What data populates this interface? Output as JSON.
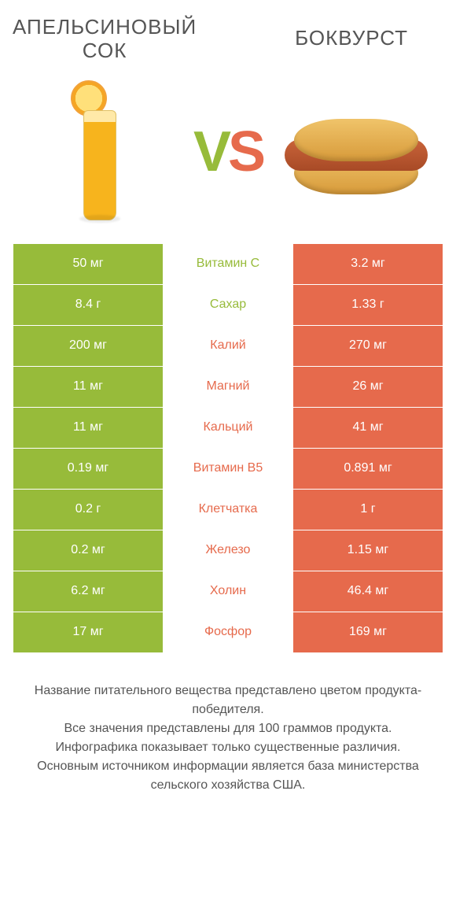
{
  "titles": {
    "left": "АПЕЛЬСИНОВЫЙ СОК",
    "right": "БОКВУРСТ"
  },
  "vs": {
    "v": "V",
    "s": "S"
  },
  "colors": {
    "green": "#97bb3a",
    "orange": "#e66a4c",
    "text": "#555555",
    "white": "#ffffff"
  },
  "rows": [
    {
      "left": "50 мг",
      "mid": "Витамин C",
      "right": "3.2 мг",
      "winner": "left"
    },
    {
      "left": "8.4 г",
      "mid": "Сахар",
      "right": "1.33 г",
      "winner": "left"
    },
    {
      "left": "200 мг",
      "mid": "Калий",
      "right": "270 мг",
      "winner": "right"
    },
    {
      "left": "11 мг",
      "mid": "Магний",
      "right": "26 мг",
      "winner": "right"
    },
    {
      "left": "11 мг",
      "mid": "Кальций",
      "right": "41 мг",
      "winner": "right"
    },
    {
      "left": "0.19 мг",
      "mid": "Витамин B5",
      "right": "0.891 мг",
      "winner": "right"
    },
    {
      "left": "0.2 г",
      "mid": "Клетчатка",
      "right": "1 г",
      "winner": "right"
    },
    {
      "left": "0.2 мг",
      "mid": "Железо",
      "right": "1.15 мг",
      "winner": "right"
    },
    {
      "left": "6.2 мг",
      "mid": "Холин",
      "right": "46.4 мг",
      "winner": "right"
    },
    {
      "left": "17 мг",
      "mid": "Фосфор",
      "right": "169 мг",
      "winner": "right"
    }
  ],
  "footer": {
    "l1": "Название питательного вещества представлено цветом продукта-победителя.",
    "l2": "Все значения представлены для 100 граммов продукта.",
    "l3": "Инфографика показывает только существенные различия.",
    "l4": "Основным источником информации является база министерства сельского хозяйства США."
  }
}
